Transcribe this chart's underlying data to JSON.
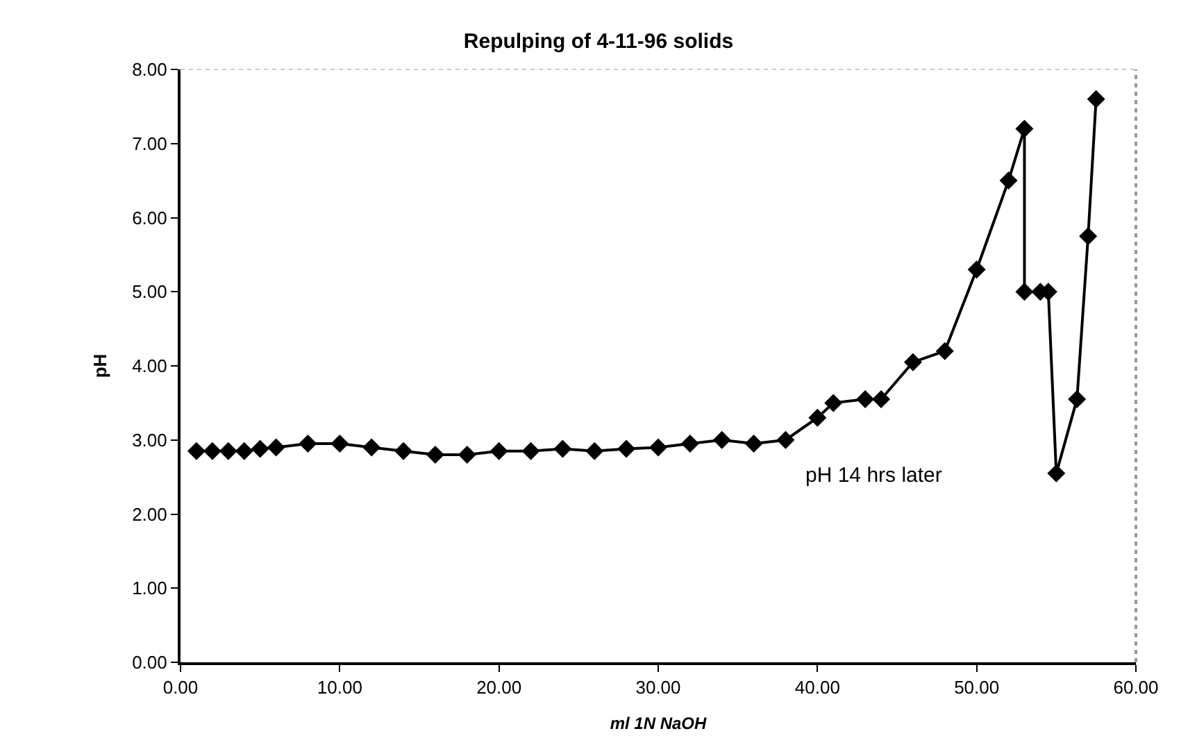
{
  "chart_data": {
    "type": "line",
    "title": "Repulping of 4-11-96 solids",
    "xlabel": "ml 1N NaOH",
    "ylabel": "pH",
    "series": [
      {
        "color": "#000000",
        "x": [
          1,
          2,
          3,
          4,
          5,
          6,
          8,
          10,
          12,
          14,
          16,
          18,
          20,
          22,
          24,
          26,
          28,
          30,
          32,
          34,
          36,
          38,
          40,
          41,
          43,
          44,
          46,
          48,
          50,
          52,
          53,
          53,
          54,
          54.5,
          55,
          56.3,
          57,
          57.5
        ],
        "values": [
          2.85,
          2.85,
          2.85,
          2.85,
          2.88,
          2.9,
          2.95,
          2.95,
          2.9,
          2.85,
          2.8,
          2.8,
          2.85,
          2.85,
          2.88,
          2.85,
          2.88,
          2.9,
          2.95,
          3.0,
          2.95,
          3.0,
          3.3,
          3.5,
          3.55,
          3.55,
          4.05,
          4.2,
          5.3,
          6.5,
          7.2,
          5.0,
          5.0,
          5.0,
          2.55,
          3.55,
          5.75,
          7.6
        ]
      }
    ],
    "annotations": [
      "pH 14 hrs later"
    ],
    "xlim": [
      0,
      60
    ],
    "xticks": [
      {
        "value": 0,
        "label": "0.00"
      },
      {
        "value": 10,
        "label": "10.00"
      },
      {
        "value": 20,
        "label": "20.00"
      },
      {
        "value": 30,
        "label": "30.00"
      },
      {
        "value": 40,
        "label": "40.00"
      },
      {
        "value": 50,
        "label": "50.00"
      },
      {
        "value": 60,
        "label": "60.00"
      }
    ],
    "ylim": [
      0,
      8
    ],
    "yticks": [
      {
        "value": 0,
        "label": "0.00"
      },
      {
        "value": 1,
        "label": "1.00"
      },
      {
        "value": 2,
        "label": "2.00"
      },
      {
        "value": 3,
        "label": "3.00"
      },
      {
        "value": 4,
        "label": "4.00"
      },
      {
        "value": 5,
        "label": "5.00"
      },
      {
        "value": 6,
        "label": "6.00"
      },
      {
        "value": 7,
        "label": "7.00"
      },
      {
        "value": 8,
        "label": "8.00"
      }
    ],
    "marker": "diamond",
    "line_style": "solid"
  }
}
